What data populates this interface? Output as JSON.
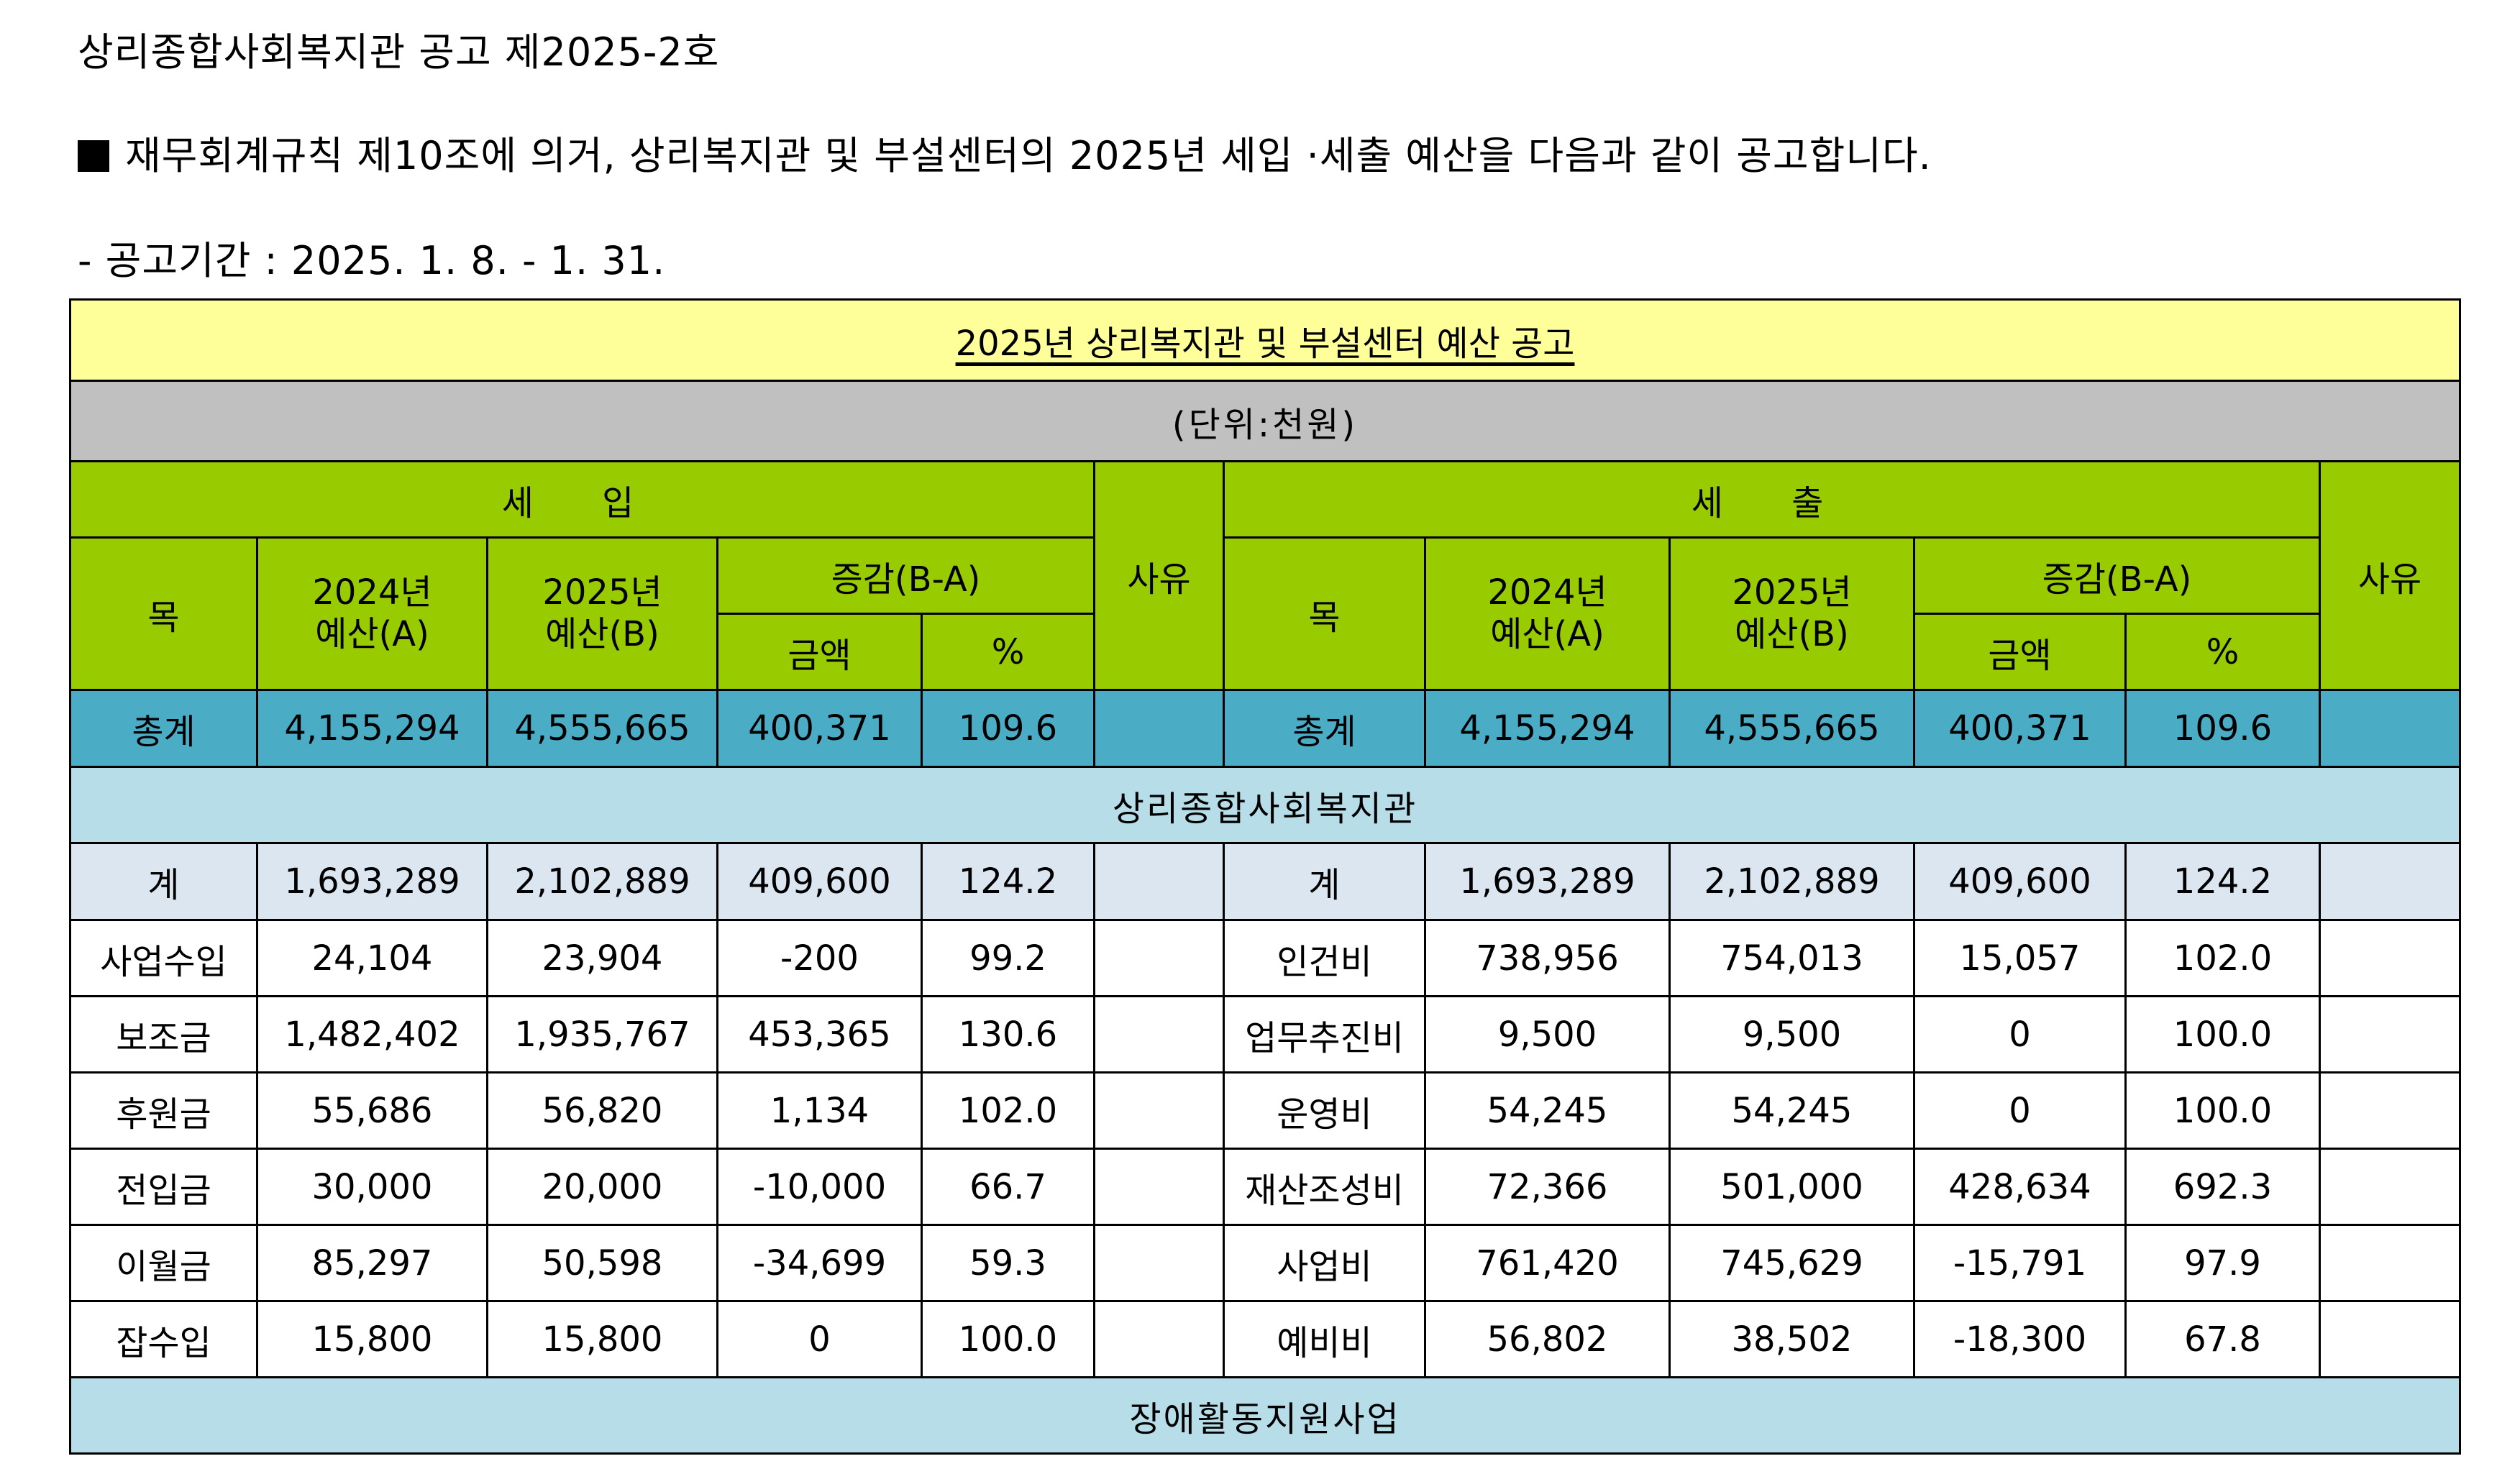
{
  "notice": {
    "heading": "상리종합사회복지관 공고 제2025-2호",
    "body": "재무회계규칙 제10조에 의거, 상리복지관 및 부설센터의 2025년 세입 ·세출 예산을 다음과 같이 공고합니다.",
    "period": "- 공고기간 : 2025. 1. 8. - 1. 31."
  },
  "table": {
    "title": "2025년 상리복지관 및 부설센터 예산 공고",
    "unit": "(단위:천원)",
    "headers": {
      "revenue": "세 입",
      "expenditure": "세 출",
      "reason": "사유",
      "item": "목",
      "prev": "2024년\n예산(A)",
      "curr": "2025년\n예산(B)",
      "diff": "증감(B-A)",
      "amount": "금액",
      "percent": "%"
    },
    "total": {
      "revenue": [
        "총계",
        "4,155,294",
        "4,555,665",
        "400,371",
        "109.6"
      ],
      "expenditure": [
        "총계",
        "4,155,294",
        "4,555,665",
        "400,371",
        "109.6"
      ]
    },
    "sections": [
      {
        "name": "상리종합사회복지관",
        "subtotal": {
          "revenue": [
            "계",
            "1,693,289",
            "2,102,889",
            "409,600",
            "124.2"
          ],
          "expenditure": [
            "계",
            "1,693,289",
            "2,102,889",
            "409,600",
            "124.2"
          ]
        },
        "rows": [
          {
            "revenue": [
              "사업수입",
              "24,104",
              "23,904",
              "-200",
              "99.2"
            ],
            "expenditure": [
              "인건비",
              "738,956",
              "754,013",
              "15,057",
              "102.0"
            ]
          },
          {
            "revenue": [
              "보조금",
              "1,482,402",
              "1,935,767",
              "453,365",
              "130.6"
            ],
            "expenditure": [
              "업무추진비",
              "9,500",
              "9,500",
              "0",
              "100.0"
            ]
          },
          {
            "revenue": [
              "후원금",
              "55,686",
              "56,820",
              "1,134",
              "102.0"
            ],
            "expenditure": [
              "운영비",
              "54,245",
              "54,245",
              "0",
              "100.0"
            ]
          },
          {
            "revenue": [
              "전입금",
              "30,000",
              "20,000",
              "-10,000",
              "66.7"
            ],
            "expenditure": [
              "재산조성비",
              "72,366",
              "501,000",
              "428,634",
              "692.3"
            ]
          },
          {
            "revenue": [
              "이월금",
              "85,297",
              "50,598",
              "-34,699",
              "59.3"
            ],
            "expenditure": [
              "사업비",
              "761,420",
              "745,629",
              "-15,791",
              "97.9"
            ]
          },
          {
            "revenue": [
              "잡수입",
              "15,800",
              "15,800",
              "0",
              "100.0"
            ],
            "expenditure": [
              "예비비",
              "56,802",
              "38,502",
              "-18,300",
              "67.8"
            ]
          }
        ]
      },
      {
        "name": "장애활동지원사업"
      }
    ]
  }
}
